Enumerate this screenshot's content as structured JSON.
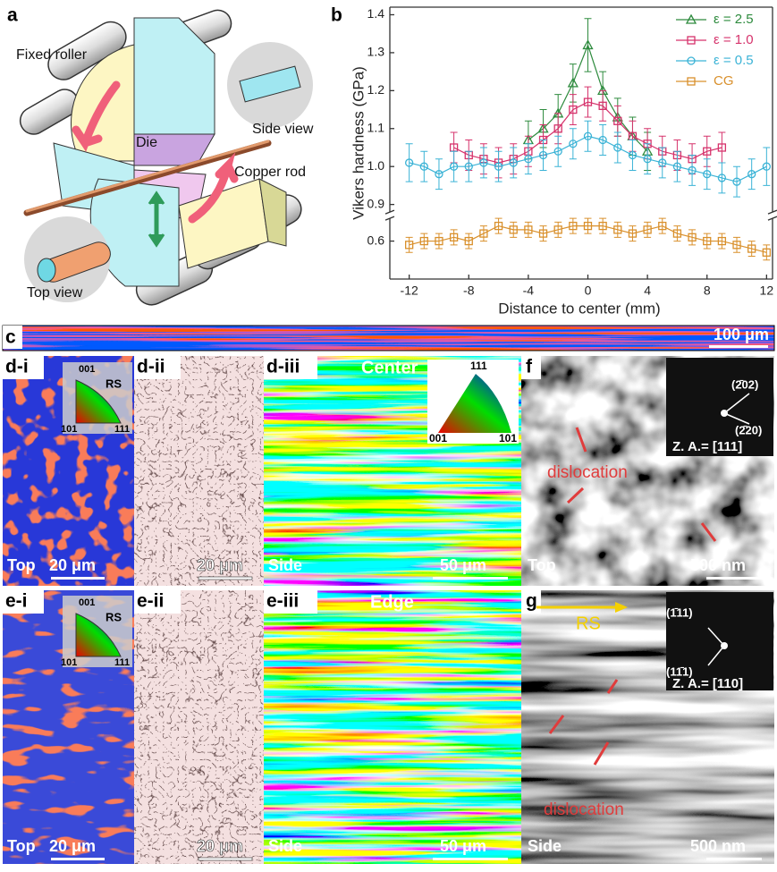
{
  "panel_a": {
    "label": "a",
    "fixed_roller": "Fixed roller",
    "side_view": "Side view",
    "die": "Die",
    "copper_rod": "Copper rod",
    "top_view": "Top view"
  },
  "panel_b": {
    "label": "b"
  },
  "chart_data": {
    "type": "line",
    "y_label": "Vikers hardness (GPa)",
    "x_label": "Distance to center (mm)",
    "xlim": [
      -13.3,
      12.4
    ],
    "xticks": [
      -12,
      -8,
      -4,
      0,
      4,
      8,
      12
    ],
    "ylim": [
      0.5,
      1.42
    ],
    "ybreak": [
      0.66,
      0.88
    ],
    "yticks": [
      0.6,
      0.9,
      {
        "value": 1,
        "label": "1.0"
      },
      1.1,
      1.2,
      1.3,
      1.4
    ],
    "legend": "top right",
    "series": [
      {
        "name": "ε = 2.5",
        "color": "#2e8b3e",
        "marker": "triangle",
        "x": [
          -4,
          -3,
          -2,
          -1,
          0,
          1,
          2,
          3,
          4
        ],
        "values": [
          1.07,
          1.1,
          1.14,
          1.22,
          1.32,
          1.2,
          1.13,
          1.08,
          1.04
        ],
        "errors": [
          0.05,
          0.05,
          0.05,
          0.05,
          0.07,
          0.05,
          0.05,
          0.05,
          0.05
        ]
      },
      {
        "name": "ε = 1.0",
        "color": "#d6336c",
        "marker": "square",
        "x": [
          -9,
          -8,
          -7,
          -6,
          -5,
          -4,
          -3,
          -2,
          -1,
          0,
          1,
          2,
          3,
          4,
          5,
          6,
          7,
          8,
          9
        ],
        "values": [
          1.05,
          1.03,
          1.02,
          1.01,
          1.02,
          1.04,
          1.07,
          1.1,
          1.15,
          1.17,
          1.16,
          1.12,
          1.08,
          1.06,
          1.04,
          1.03,
          1.02,
          1.04,
          1.05
        ],
        "errors": [
          0.04,
          0.04,
          0.04,
          0.04,
          0.04,
          0.04,
          0.04,
          0.04,
          0.04,
          0.04,
          0.04,
          0.04,
          0.04,
          0.04,
          0.04,
          0.04,
          0.04,
          0.04,
          0.04
        ]
      },
      {
        "name": "ε = 0.5",
        "color": "#3bb3d6",
        "marker": "circle",
        "x": [
          -12,
          -11,
          -10,
          -9,
          -8,
          -7,
          -6,
          -5,
          -4,
          -3,
          -2,
          -1,
          0,
          1,
          2,
          3,
          4,
          5,
          6,
          7,
          8,
          9,
          10,
          11,
          12
        ],
        "values": [
          1.01,
          1.0,
          0.98,
          1.0,
          1.0,
          1.01,
          1.0,
          1.01,
          1.02,
          1.03,
          1.04,
          1.06,
          1.08,
          1.07,
          1.05,
          1.03,
          1.02,
          1.01,
          1.0,
          0.99,
          0.98,
          0.97,
          0.96,
          0.98,
          1.0
        ],
        "errors": [
          0.05,
          0.04,
          0.04,
          0.04,
          0.04,
          0.04,
          0.04,
          0.04,
          0.04,
          0.04,
          0.04,
          0.04,
          0.04,
          0.04,
          0.04,
          0.04,
          0.04,
          0.04,
          0.04,
          0.04,
          0.04,
          0.04,
          0.04,
          0.04,
          0.05
        ]
      },
      {
        "name": "CG",
        "color": "#d9902c",
        "marker": "square",
        "x": [
          -12,
          -11,
          -10,
          -9,
          -8,
          -7,
          -6,
          -5,
          -4,
          -3,
          -2,
          -1,
          0,
          1,
          2,
          3,
          4,
          5,
          6,
          7,
          8,
          9,
          10,
          11,
          12
        ],
        "values": [
          0.59,
          0.6,
          0.6,
          0.61,
          0.6,
          0.62,
          0.64,
          0.63,
          0.63,
          0.62,
          0.63,
          0.64,
          0.64,
          0.64,
          0.63,
          0.62,
          0.63,
          0.64,
          0.62,
          0.61,
          0.6,
          0.6,
          0.59,
          0.58,
          0.57
        ],
        "errors": [
          0.02,
          0.02,
          0.02,
          0.02,
          0.02,
          0.02,
          0.02,
          0.02,
          0.02,
          0.02,
          0.02,
          0.02,
          0.02,
          0.02,
          0.02,
          0.02,
          0.02,
          0.02,
          0.02,
          0.02,
          0.02,
          0.02,
          0.02,
          0.02,
          0.02
        ]
      }
    ]
  },
  "panel_c": {
    "label": "c",
    "scale_bar": "100 μm"
  },
  "panel_d_i": {
    "label": "d-i",
    "direction": "RS",
    "pole_001": "001",
    "pole_101": "101",
    "pole_111": "111",
    "view": "Top",
    "scale_bar": "20 μm"
  },
  "panel_d_ii": {
    "label": "d-ii",
    "scale_bar": "20 μm"
  },
  "panel_d_iii": {
    "label": "d-iii",
    "region": "Center",
    "pole_111": "111",
    "pole_001": "001",
    "pole_101": "101",
    "view": "Side",
    "scale_bar": "50 μm"
  },
  "panel_f": {
    "label": "f",
    "spot_1": "(2̄02)",
    "spot_2": "(2̄20)",
    "zone_axis": "Z. A.= [111]",
    "annotation": "dislocation",
    "view": "Top",
    "scale_bar": "500 nm"
  },
  "panel_e_i": {
    "label": "e-i",
    "pole_001": "001",
    "direction": "RS",
    "pole_101": "101",
    "pole_111": "111",
    "view": "Top",
    "scale_bar": "20 μm"
  },
  "panel_e_ii": {
    "label": "e-ii",
    "scale_bar": "20 μm"
  },
  "panel_e_iii": {
    "label": "e-iii",
    "region": "Edge",
    "view": "Side",
    "scale_bar": "50 μm"
  },
  "panel_g": {
    "label": "g",
    "direction": "RS",
    "spot_1": "(1̄11)",
    "spot_2": "(11̄1)",
    "zone_axis": "Z. A.= [110]",
    "annotation": "dislocation",
    "view": "Side",
    "scale_bar": "500 nm"
  }
}
